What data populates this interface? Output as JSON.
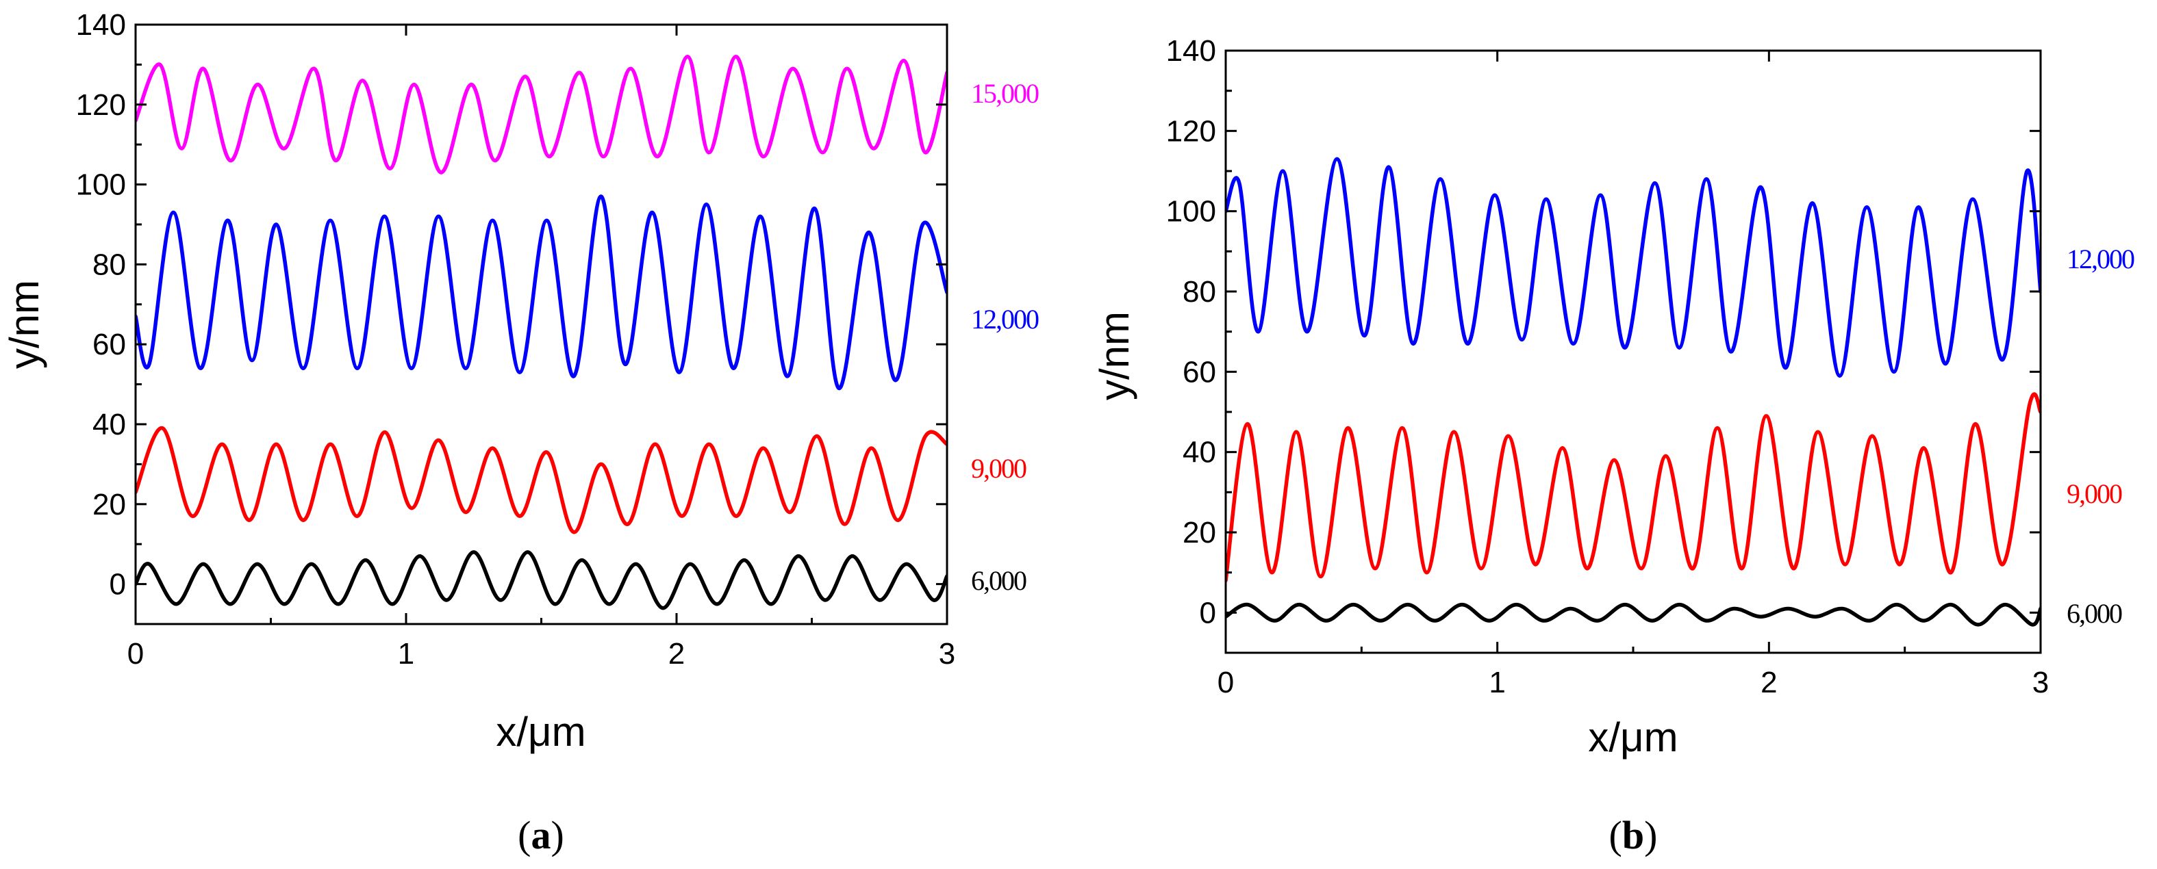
{
  "colors": {
    "magenta": "#ff00ff",
    "blue": "#0000ff",
    "red": "#ff0000",
    "black": "#000000"
  },
  "chart_data": [
    {
      "type": "line",
      "caption": "a",
      "xlabel": "x/μm",
      "ylabel": "y/nm",
      "xlim": [
        0,
        3
      ],
      "ylim": [
        -10,
        140
      ],
      "xticks": [
        "0",
        "1",
        "2",
        "3"
      ],
      "yticks": [
        "0",
        "20",
        "40",
        "60",
        "80",
        "100",
        "120",
        "140"
      ],
      "series": [
        {
          "name": "15,000",
          "color": "#ff00ff",
          "x_end": 3.0,
          "baseline": 118,
          "amplitude": 10.5,
          "peaks": 16.5,
          "phase": 0.0,
          "points": [
            [
              0,
              116
            ],
            [
              0.09,
              130
            ],
            [
              0.17,
              109
            ],
            [
              0.25,
              129
            ],
            [
              0.35,
              106
            ],
            [
              0.45,
              125
            ],
            [
              0.55,
              109
            ],
            [
              0.66,
              129
            ],
            [
              0.74,
              106
            ],
            [
              0.84,
              126
            ],
            [
              0.94,
              104
            ],
            [
              1.03,
              125
            ],
            [
              1.13,
              103
            ],
            [
              1.24,
              125
            ],
            [
              1.33,
              106
            ],
            [
              1.44,
              127
            ],
            [
              1.53,
              107
            ],
            [
              1.64,
              128
            ],
            [
              1.73,
              107
            ],
            [
              1.83,
              129
            ],
            [
              1.93,
              107
            ],
            [
              2.04,
              132
            ],
            [
              2.12,
              108
            ],
            [
              2.22,
              132
            ],
            [
              2.32,
              107
            ],
            [
              2.43,
              129
            ],
            [
              2.54,
              108
            ],
            [
              2.63,
              129
            ],
            [
              2.73,
              109
            ],
            [
              2.84,
              131
            ],
            [
              2.92,
              108
            ],
            [
              3.0,
              128
            ]
          ]
        },
        {
          "name": "12,000",
          "color": "#0000ff",
          "x_end": 3.0,
          "baseline": 73,
          "amplitude": 19,
          "peaks": 22,
          "phase": 0.0,
          "points": [
            [
              0,
              67
            ],
            [
              0.05,
              55
            ],
            [
              0.14,
              93
            ],
            [
              0.24,
              54
            ],
            [
              0.34,
              91
            ],
            [
              0.43,
              56
            ],
            [
              0.52,
              90
            ],
            [
              0.62,
              54
            ],
            [
              0.72,
              91
            ],
            [
              0.82,
              54
            ],
            [
              0.92,
              92
            ],
            [
              1.02,
              54
            ],
            [
              1.12,
              92
            ],
            [
              1.22,
              54
            ],
            [
              1.32,
              91
            ],
            [
              1.42,
              53
            ],
            [
              1.52,
              91
            ],
            [
              1.62,
              52
            ],
            [
              1.72,
              97
            ],
            [
              1.81,
              55
            ],
            [
              1.91,
              93
            ],
            [
              2.01,
              53
            ],
            [
              2.11,
              95
            ],
            [
              2.21,
              54
            ],
            [
              2.31,
              92
            ],
            [
              2.41,
              52
            ],
            [
              2.51,
              94
            ],
            [
              2.6,
              49
            ],
            [
              2.71,
              88
            ],
            [
              2.81,
              51
            ],
            [
              2.91,
              90
            ],
            [
              3.0,
              73
            ]
          ]
        },
        {
          "name": "9,000",
          "color": "#ff0000",
          "x_end": 3.0,
          "baseline": 26,
          "amplitude": 9.5,
          "peaks": 17.5,
          "phase": 0.0,
          "points": [
            [
              0,
              23
            ],
            [
              0.1,
              39
            ],
            [
              0.21,
              17
            ],
            [
              0.32,
              35
            ],
            [
              0.42,
              16
            ],
            [
              0.52,
              35
            ],
            [
              0.62,
              16
            ],
            [
              0.72,
              35
            ],
            [
              0.82,
              17
            ],
            [
              0.92,
              38
            ],
            [
              1.02,
              19
            ],
            [
              1.12,
              36
            ],
            [
              1.22,
              18
            ],
            [
              1.32,
              34
            ],
            [
              1.42,
              17
            ],
            [
              1.52,
              33
            ],
            [
              1.62,
              13
            ],
            [
              1.72,
              30
            ],
            [
              1.82,
              15
            ],
            [
              1.92,
              35
            ],
            [
              2.02,
              17
            ],
            [
              2.12,
              35
            ],
            [
              2.22,
              17
            ],
            [
              2.32,
              34
            ],
            [
              2.42,
              18
            ],
            [
              2.52,
              37
            ],
            [
              2.62,
              15
            ],
            [
              2.72,
              34
            ],
            [
              2.82,
              16
            ],
            [
              2.92,
              37
            ],
            [
              3.0,
              35
            ]
          ]
        },
        {
          "name": "6,000",
          "color": "#000000",
          "x_end": 3.0,
          "baseline": 0,
          "amplitude": 5,
          "peaks": 17.5,
          "phase": 0.0,
          "points": [
            [
              0,
              0
            ],
            [
              0.05,
              5
            ],
            [
              0.15,
              -5
            ],
            [
              0.25,
              5
            ],
            [
              0.35,
              -5
            ],
            [
              0.45,
              5
            ],
            [
              0.55,
              -5
            ],
            [
              0.65,
              5
            ],
            [
              0.75,
              -5
            ],
            [
              0.85,
              6
            ],
            [
              0.95,
              -5
            ],
            [
              1.05,
              7
            ],
            [
              1.15,
              -4
            ],
            [
              1.25,
              8
            ],
            [
              1.35,
              -4
            ],
            [
              1.45,
              8
            ],
            [
              1.55,
              -5
            ],
            [
              1.65,
              6
            ],
            [
              1.75,
              -5
            ],
            [
              1.85,
              5
            ],
            [
              1.95,
              -6
            ],
            [
              2.05,
              5
            ],
            [
              2.15,
              -5
            ],
            [
              2.25,
              6
            ],
            [
              2.35,
              -5
            ],
            [
              2.45,
              7
            ],
            [
              2.55,
              -4
            ],
            [
              2.65,
              7
            ],
            [
              2.75,
              -4
            ],
            [
              2.85,
              5
            ],
            [
              2.95,
              -4
            ],
            [
              3.0,
              2
            ]
          ]
        }
      ]
    },
    {
      "type": "line",
      "caption": "b",
      "xlabel": "x/μm",
      "ylabel": "y/nm",
      "xlim": [
        0,
        3
      ],
      "ylim": [
        -10,
        140
      ],
      "xticks": [
        "0",
        "1",
        "2",
        "3"
      ],
      "yticks": [
        "0",
        "20",
        "40",
        "60",
        "80",
        "100",
        "120",
        "140"
      ],
      "series": [
        {
          "name": "12,000",
          "color": "#0000ff",
          "x_end": 3.0,
          "baseline": 87,
          "amplitude": 19,
          "peaks": 19.5,
          "phase": 0.0,
          "points": [
            [
              0,
              100
            ],
            [
              0.05,
              107
            ],
            [
              0.12,
              70
            ],
            [
              0.21,
              110
            ],
            [
              0.3,
              70
            ],
            [
              0.41,
              113
            ],
            [
              0.51,
              69
            ],
            [
              0.6,
              111
            ],
            [
              0.69,
              67
            ],
            [
              0.79,
              108
            ],
            [
              0.89,
              67
            ],
            [
              0.99,
              104
            ],
            [
              1.09,
              68
            ],
            [
              1.18,
              103
            ],
            [
              1.28,
              67
            ],
            [
              1.38,
              104
            ],
            [
              1.47,
              66
            ],
            [
              1.58,
              107
            ],
            [
              1.67,
              66
            ],
            [
              1.77,
              108
            ],
            [
              1.86,
              65
            ],
            [
              1.97,
              106
            ],
            [
              2.06,
              61
            ],
            [
              2.16,
              102
            ],
            [
              2.26,
              59
            ],
            [
              2.36,
              101
            ],
            [
              2.46,
              60
            ],
            [
              2.55,
              101
            ],
            [
              2.65,
              62
            ],
            [
              2.75,
              103
            ],
            [
              2.86,
              63
            ],
            [
              2.95,
              110
            ],
            [
              3.0,
              80
            ]
          ]
        },
        {
          "name": "9,000",
          "color": "#ff0000",
          "x_end": 3.0,
          "baseline": 28,
          "amplitude": 18,
          "peaks": 20.5,
          "phase": 0.0,
          "points": [
            [
              0,
              8
            ],
            [
              0.08,
              47
            ],
            [
              0.17,
              10
            ],
            [
              0.26,
              45
            ],
            [
              0.35,
              9
            ],
            [
              0.45,
              46
            ],
            [
              0.55,
              11
            ],
            [
              0.65,
              46
            ],
            [
              0.74,
              10
            ],
            [
              0.84,
              45
            ],
            [
              0.94,
              11
            ],
            [
              1.04,
              44
            ],
            [
              1.14,
              12
            ],
            [
              1.24,
              41
            ],
            [
              1.33,
              11
            ],
            [
              1.43,
              38
            ],
            [
              1.53,
              11
            ],
            [
              1.62,
              39
            ],
            [
              1.72,
              11
            ],
            [
              1.81,
              46
            ],
            [
              1.9,
              11
            ],
            [
              1.99,
              49
            ],
            [
              2.09,
              11
            ],
            [
              2.18,
              45
            ],
            [
              2.28,
              12
            ],
            [
              2.38,
              44
            ],
            [
              2.48,
              12
            ],
            [
              2.57,
              41
            ],
            [
              2.67,
              10
            ],
            [
              2.76,
              47
            ],
            [
              2.86,
              12
            ],
            [
              2.96,
              52
            ],
            [
              3.0,
              50
            ]
          ]
        },
        {
          "name": "6,000",
          "color": "#000000",
          "x_end": 3.0,
          "baseline": 0,
          "amplitude": 2,
          "peaks": 18,
          "phase": 0.0,
          "points": [
            [
              0,
              -1
            ],
            [
              0.08,
              2
            ],
            [
              0.18,
              -2
            ],
            [
              0.27,
              2
            ],
            [
              0.37,
              -2
            ],
            [
              0.47,
              2
            ],
            [
              0.57,
              -2
            ],
            [
              0.67,
              2
            ],
            [
              0.77,
              -2
            ],
            [
              0.87,
              2
            ],
            [
              0.97,
              -2
            ],
            [
              1.07,
              2
            ],
            [
              1.17,
              -2
            ],
            [
              1.27,
              1
            ],
            [
              1.37,
              -2
            ],
            [
              1.47,
              2
            ],
            [
              1.57,
              -2
            ],
            [
              1.67,
              2
            ],
            [
              1.77,
              -2
            ],
            [
              1.87,
              1
            ],
            [
              1.97,
              -1
            ],
            [
              2.07,
              1
            ],
            [
              2.17,
              -1
            ],
            [
              2.27,
              1
            ],
            [
              2.37,
              -2
            ],
            [
              2.47,
              2
            ],
            [
              2.57,
              -2
            ],
            [
              2.67,
              2
            ],
            [
              2.77,
              -3
            ],
            [
              2.87,
              2
            ],
            [
              2.97,
              -3
            ],
            [
              3.0,
              1
            ]
          ]
        }
      ]
    }
  ]
}
